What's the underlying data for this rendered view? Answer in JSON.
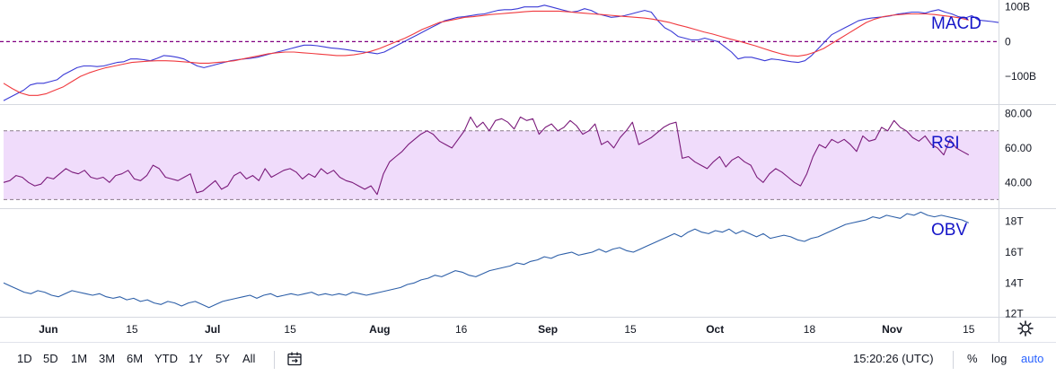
{
  "chart_data": [
    {
      "type": "line",
      "title": "MACD",
      "ylim": [
        -180,
        120
      ],
      "y_ticks": [
        "100B",
        "0",
        "−100B"
      ],
      "y_tick_values": [
        100,
        0,
        -100
      ],
      "y_unit": "B",
      "zero_line_color": "#800080",
      "series": [
        {
          "color": "#3a3ad6",
          "values": [
            -170,
            -160,
            -150,
            -140,
            -125,
            -120,
            -120,
            -115,
            -110,
            -95,
            -85,
            -75,
            -70,
            -70,
            -72,
            -70,
            -65,
            -60,
            -58,
            -50,
            -50,
            -52,
            -55,
            -48,
            -40,
            -42,
            -45,
            -50,
            -60,
            -70,
            -75,
            -70,
            -65,
            -60,
            -55,
            -52,
            -50,
            -48,
            -45,
            -40,
            -35,
            -30,
            -25,
            -20,
            -15,
            -10,
            -10,
            -12,
            -15,
            -18,
            -20,
            -22,
            -25,
            -28,
            -30,
            -32,
            -35,
            -30,
            -20,
            -10,
            0,
            10,
            20,
            30,
            40,
            50,
            60,
            65,
            70,
            72,
            75,
            78,
            80,
            85,
            90,
            92,
            92,
            95,
            100,
            100,
            100,
            105,
            100,
            95,
            90,
            85,
            88,
            95,
            90,
            80,
            75,
            70,
            72,
            75,
            80,
            85,
            90,
            85,
            60,
            40,
            30,
            15,
            10,
            5,
            5,
            10,
            5,
            0,
            -15,
            -30,
            -50,
            -45,
            -45,
            -50,
            -55,
            -50,
            -52,
            -55,
            -58,
            -60,
            -55,
            -40,
            -20,
            0,
            20,
            30,
            40,
            50,
            60,
            65,
            68,
            70,
            72,
            75,
            80,
            82,
            85,
            85,
            82,
            88,
            92,
            85,
            80,
            72,
            68,
            75,
            62,
            60,
            58,
            55
          ],
          "x_start": 0,
          "x_end": 1
        },
        {
          "color": "#f0393e",
          "values": [
            -120,
            -135,
            -148,
            -155,
            -155,
            -150,
            -140,
            -130,
            -115,
            -100,
            -90,
            -82,
            -75,
            -70,
            -65,
            -60,
            -58,
            -56,
            -55,
            -55,
            -56,
            -58,
            -60,
            -62,
            -62,
            -60,
            -58,
            -55,
            -50,
            -45,
            -40,
            -35,
            -32,
            -30,
            -30,
            -32,
            -34,
            -36,
            -38,
            -40,
            -40,
            -38,
            -34,
            -28,
            -20,
            -10,
            0,
            10,
            22,
            35,
            45,
            55,
            60,
            65,
            70,
            72,
            75,
            78,
            80,
            82,
            84,
            86,
            88,
            88,
            88,
            88,
            86,
            84,
            82,
            80,
            78,
            76,
            74,
            72,
            70,
            68,
            65,
            60,
            55,
            48,
            42,
            35,
            28,
            22,
            15,
            8,
            2,
            -5,
            -12,
            -20,
            -28,
            -35,
            -40,
            -42,
            -38,
            -30,
            -20,
            -5,
            10,
            25,
            40,
            55,
            65,
            72,
            76,
            78,
            80,
            80,
            80,
            78,
            75,
            72,
            68,
            62
          ],
          "x_start": 0,
          "x_end": 0.97
        }
      ],
      "label_color": "#1515c8"
    },
    {
      "type": "line",
      "title": "RSI",
      "ylim": [
        25,
        85
      ],
      "y_ticks": [
        "80.00",
        "60.00",
        "40.00"
      ],
      "y_tick_values": [
        80,
        60,
        40
      ],
      "band": [
        30,
        70
      ],
      "band_color": "#f0dcfb",
      "series": [
        {
          "color": "#7a1a7a",
          "values": [
            40,
            41,
            44,
            43,
            40,
            38,
            39,
            43,
            42,
            45,
            48,
            46,
            45,
            47,
            43,
            42,
            43,
            40,
            44,
            45,
            47,
            42,
            41,
            44,
            50,
            48,
            43,
            42,
            41,
            43,
            45,
            34,
            35,
            38,
            41,
            36,
            38,
            44,
            46,
            42,
            44,
            41,
            48,
            43,
            45,
            47,
            48,
            46,
            42,
            45,
            43,
            48,
            45,
            47,
            43,
            41,
            40,
            38,
            36,
            38,
            33,
            45,
            52,
            55,
            58,
            62,
            65,
            68,
            70,
            68,
            64,
            62,
            60,
            65,
            70,
            78,
            72,
            75,
            70,
            76,
            77,
            75,
            71,
            78,
            76,
            77,
            68,
            72,
            74,
            70,
            72,
            76,
            73,
            68,
            70,
            74,
            62,
            64,
            60,
            66,
            70,
            75,
            62,
            64,
            66,
            69,
            72,
            74,
            75,
            54,
            55,
            52,
            50,
            48,
            52,
            55,
            49,
            53,
            55,
            52,
            50,
            43,
            40,
            45,
            48,
            46,
            43,
            40,
            38,
            45,
            55,
            62,
            60,
            65,
            63,
            65,
            62,
            58,
            67,
            64,
            65,
            72,
            70,
            76,
            72,
            70,
            66,
            64,
            67,
            62,
            60,
            56,
            65,
            60,
            58,
            56
          ],
          "x_start": 0,
          "x_end": 0.97
        }
      ],
      "label_color": "#1515c8"
    },
    {
      "type": "line",
      "title": "OBV",
      "ylim": [
        11.8,
        18.8
      ],
      "y_ticks": [
        "18T",
        "16T",
        "14T",
        "12T"
      ],
      "y_tick_values": [
        18,
        16,
        14,
        12
      ],
      "y_unit": "T",
      "series": [
        {
          "color": "#2d5fa8",
          "values": [
            14.0,
            13.8,
            13.6,
            13.4,
            13.3,
            13.5,
            13.4,
            13.2,
            13.1,
            13.3,
            13.5,
            13.4,
            13.3,
            13.2,
            13.3,
            13.1,
            13.0,
            13.1,
            12.9,
            13.0,
            12.8,
            12.9,
            12.7,
            12.6,
            12.8,
            12.7,
            12.5,
            12.7,
            12.8,
            12.6,
            12.4,
            12.6,
            12.8,
            12.9,
            13.0,
            13.1,
            13.2,
            13.0,
            13.2,
            13.3,
            13.1,
            13.2,
            13.3,
            13.2,
            13.3,
            13.4,
            13.2,
            13.3,
            13.2,
            13.3,
            13.2,
            13.4,
            13.3,
            13.2,
            13.3,
            13.4,
            13.5,
            13.6,
            13.7,
            13.9,
            14.0,
            14.2,
            14.3,
            14.5,
            14.4,
            14.6,
            14.8,
            14.7,
            14.5,
            14.4,
            14.6,
            14.8,
            14.9,
            15.0,
            15.1,
            15.3,
            15.2,
            15.4,
            15.5,
            15.7,
            15.6,
            15.8,
            15.9,
            16.0,
            15.8,
            15.9,
            16.0,
            16.2,
            16.0,
            16.2,
            16.3,
            16.1,
            16.0,
            16.2,
            16.4,
            16.6,
            16.8,
            17.0,
            17.2,
            17.0,
            17.3,
            17.5,
            17.3,
            17.2,
            17.4,
            17.3,
            17.5,
            17.2,
            17.4,
            17.2,
            17.0,
            17.2,
            16.9,
            17.0,
            17.1,
            17.0,
            16.8,
            16.7,
            16.9,
            17.0,
            17.2,
            17.4,
            17.6,
            17.8,
            17.9,
            18.0,
            18.1,
            18.3,
            18.2,
            18.4,
            18.3,
            18.2,
            18.5,
            18.4,
            18.6,
            18.4,
            18.3,
            18.4,
            18.3,
            18.2,
            18.1,
            17.9
          ],
          "x_start": 0,
          "x_end": 0.97
        }
      ],
      "label_color": "#1515c8"
    }
  ],
  "x_axis": {
    "tick_labels": [
      "Jun",
      "15",
      "Jul",
      "15",
      "Aug",
      "16",
      "Sep",
      "15",
      "Oct",
      "18",
      "Nov",
      "15"
    ],
    "tick_bold": [
      true,
      false,
      true,
      false,
      true,
      false,
      true,
      false,
      true,
      false,
      true,
      false
    ],
    "tick_positions": [
      0.045,
      0.129,
      0.21,
      0.288,
      0.378,
      0.46,
      0.547,
      0.63,
      0.715,
      0.81,
      0.893,
      0.97
    ]
  },
  "toolbar": {
    "timeframes": [
      "1D",
      "5D",
      "1M",
      "3M",
      "6M",
      "YTD",
      "1Y",
      "5Y",
      "All"
    ],
    "time": "15:20:26 (UTC)",
    "percent": "%",
    "log": "log",
    "auto": "auto",
    "goto_date_icon": "calendar-icon",
    "settings_icon": "gear-icon"
  }
}
